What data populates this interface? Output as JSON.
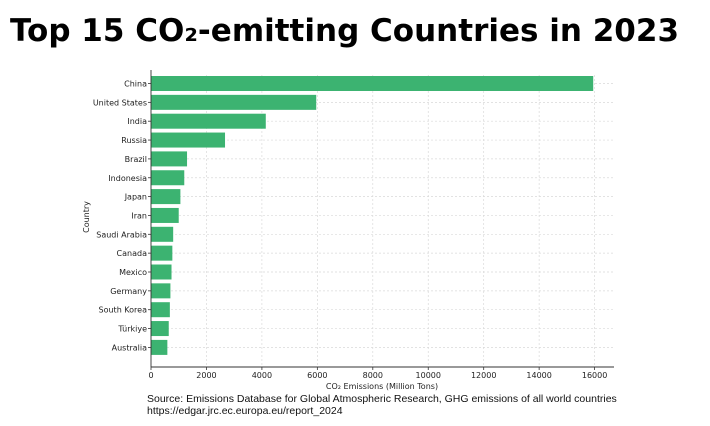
{
  "title": "Top 15 CO₂-emitting Countries in 2023",
  "source": {
    "line1": "Source: Emissions Database for Global Atmospheric Research, GHG emissions of all world countries",
    "line2": "https://edgar.jrc.ec.europa.eu/report_2024"
  },
  "colors": {
    "bar": "#3cb371",
    "grid": "#d9d9d9",
    "axis": "#333333",
    "text": "#222222"
  },
  "chart_data": {
    "type": "bar",
    "orientation": "horizontal",
    "categories": [
      "China",
      "United States",
      "India",
      "Russia",
      "Brazil",
      "Indonesia",
      "Japan",
      "Iran",
      "Saudi Arabia",
      "Canada",
      "Mexico",
      "Germany",
      "South Korea",
      "Türkiye",
      "Australia"
    ],
    "values": [
      15950,
      5960,
      4140,
      2670,
      1300,
      1200,
      1060,
      1000,
      800,
      770,
      740,
      700,
      680,
      640,
      590
    ],
    "xlabel": "CO₂ Emissions (Million Tons)",
    "ylabel": "Country",
    "xlim": [
      0,
      16700
    ],
    "xticks": [
      0,
      2000,
      4000,
      6000,
      8000,
      10000,
      12000,
      14000,
      16000
    ],
    "grid": true
  }
}
